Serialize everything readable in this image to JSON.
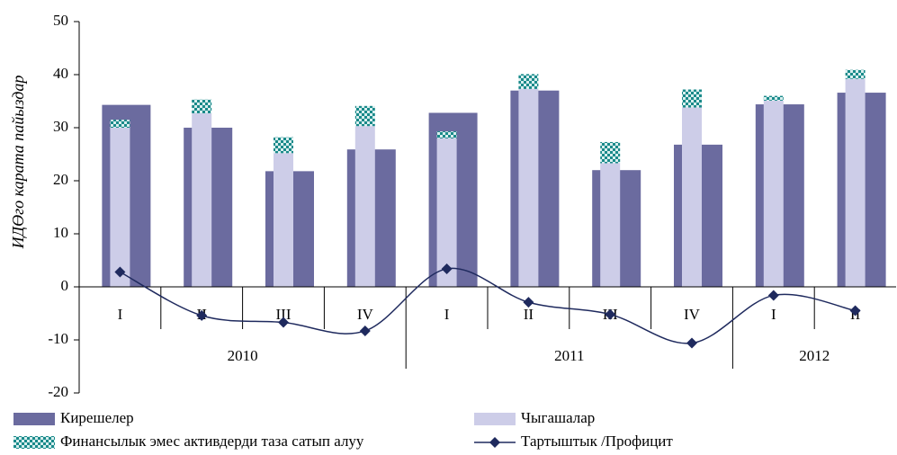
{
  "chart_data": {
    "type": "bar",
    "y_axis_label": "ИДӨго карата пайыздар",
    "groups": [
      {
        "name": "2010",
        "categories": [
          "I",
          "II",
          "III",
          "IV"
        ]
      },
      {
        "name": "2011",
        "categories": [
          "I",
          "II",
          "III",
          "IV"
        ]
      },
      {
        "name": "2012",
        "categories": [
          "I",
          "II"
        ]
      }
    ],
    "series": [
      {
        "name": "Кирешелер",
        "color": "#6b6b9f",
        "kind": "bar",
        "values": [
          34.3,
          30,
          21.8,
          25.9,
          32.8,
          37,
          22,
          26.8,
          34.4,
          36.6
        ]
      },
      {
        "name": "Чыгашалар",
        "color": "#cdcde8",
        "kind": "bar",
        "values": [
          30,
          32.7,
          25.2,
          30.3,
          28,
          37.3,
          23.3,
          33.8,
          35.1,
          39.2
        ]
      },
      {
        "name": "Финансылык эмес активдерди таза сатып алуу",
        "color": "#1a8a8a",
        "kind": "stacked-pattern",
        "values": [
          1.5,
          2.6,
          3.0,
          3.8,
          1.3,
          2.8,
          4.0,
          3.4,
          0.9,
          1.7
        ]
      },
      {
        "name": "Тартыштык /Профицит",
        "color": "#1f2a5e",
        "kind": "line",
        "values": [
          2.8,
          -5.4,
          -6.7,
          -8.3,
          3.4,
          -2.9,
          -5.2,
          -10.6,
          -1.6,
          -4.5
        ]
      }
    ],
    "ylim": [
      -20,
      50
    ],
    "yticks": [
      -20,
      -10,
      0,
      10,
      20,
      30,
      40,
      50
    ]
  }
}
